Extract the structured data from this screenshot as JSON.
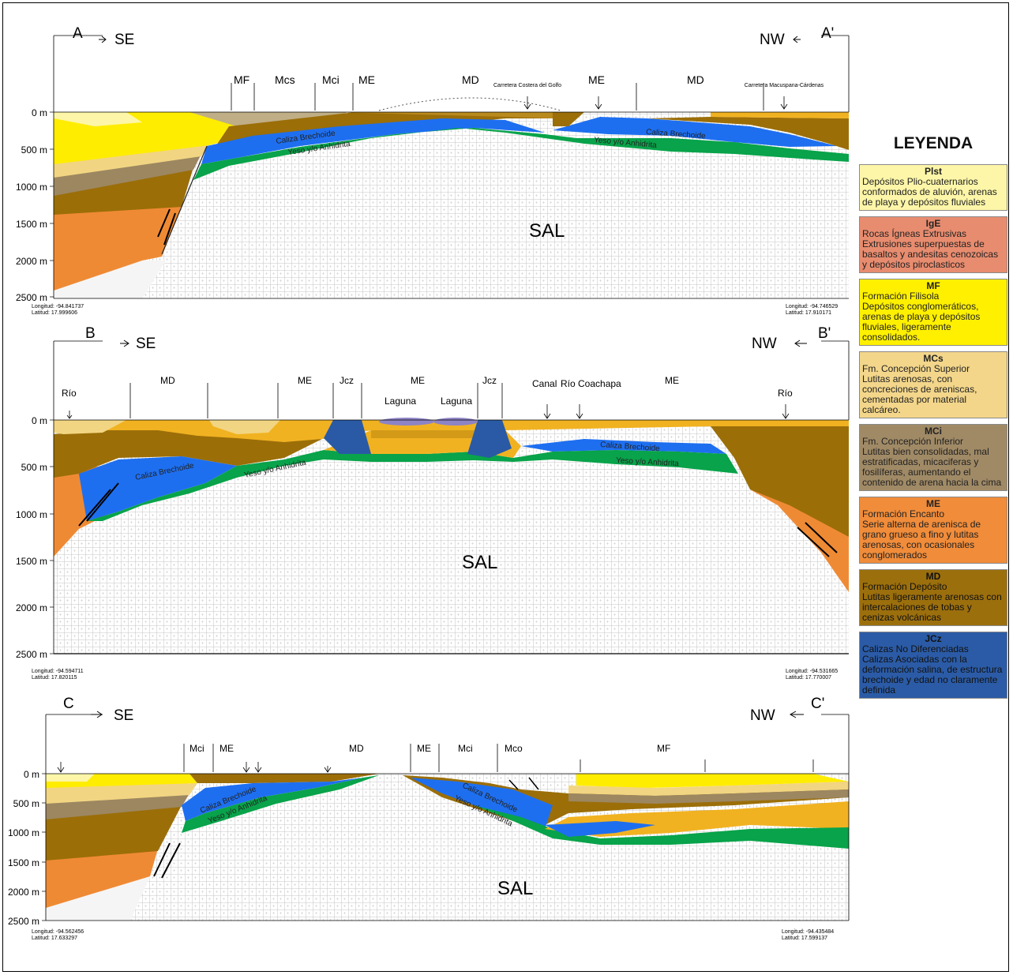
{
  "colors": {
    "plst": "#fdf6a8",
    "ige": "#ec8f6a",
    "mf": "#ffed00",
    "mcs": "#f2d582",
    "mci": "#9c8761",
    "me": "#ef8a34",
    "md": "#9b6e08",
    "jcz": "#2a5aa5",
    "caliza": "#1e6ff0",
    "yeso": "#08a34a",
    "light_orange": "#f1b221",
    "sal_grid": "#b9b9b9",
    "laguna": "#8d84c5"
  },
  "sections": [
    {
      "start_label": "A",
      "start_dir": "SE",
      "end_label": "A'",
      "end_dir": "NW",
      "depth_labels": [
        "0 m",
        "500 m",
        "1000 m",
        "1500 m",
        "2000 m",
        "2500 m"
      ],
      "unit_labels": [
        "MF",
        "Mcs",
        "Mci",
        "ME",
        "MD",
        "ME",
        "MD"
      ],
      "annotations": [
        "Carretera Costera del Golfo",
        "Carretera Macuspana-Cárdenas"
      ],
      "layer_labels": [
        "Caliza Brechoide",
        "Yeso y/o Anhidrita",
        "Caliza Brechoide",
        "Yeso y/o Anhidrita"
      ],
      "sal_label": "SAL",
      "coord_left": "Longitud: -94.841737\nLatitud: 17.999606",
      "coord_right": "Longitud: -94.746529\nLatitud: 17.910171"
    },
    {
      "start_label": "B",
      "start_dir": "SE",
      "end_label": "B'",
      "end_dir": "NW",
      "depth_labels": [
        "0 m",
        "500 m",
        "1000 m",
        "1500 m",
        "2000 m",
        "2500 m"
      ],
      "unit_labels": [
        "Río",
        "MD",
        "ME",
        "Jcz",
        "ME",
        "Laguna",
        "Laguna",
        "Jcz",
        "Canal",
        "Río Coachapa",
        "ME",
        "Río"
      ],
      "layer_labels": [
        "Caliza Brechoide",
        "Yeso y/o Anhidrita",
        "Caliza Brechoide",
        "Yeso y/o Anhidrita"
      ],
      "sal_label": "SAL",
      "coord_left": "Longitud: -94.594711\nLatitud: 17.820115",
      "coord_right": "Longitud: -94.531665\nLatitud: 17.770007"
    },
    {
      "start_label": "C",
      "start_dir": "SE",
      "end_label": "C'",
      "end_dir": "NW",
      "depth_labels": [
        "0 m",
        "500 m",
        "1000 m",
        "1500 m",
        "2000 m",
        "2500 m"
      ],
      "unit_labels": [
        "Mci",
        "ME",
        "MD",
        "ME",
        "Mci",
        "Mco",
        "MF"
      ],
      "layer_labels": [
        "Caliza Brechoide",
        "Yeso y/o Anhidrita",
        "Caliza Brechoide",
        "Yeso y/o Anhidrita"
      ],
      "sal_label": "SAL",
      "coord_left": "Longitud: -94.562456\nLatitud: 17.633297",
      "coord_right": "Longitud: -94.435484\nLatitud: 17.599137"
    }
  ],
  "legend": {
    "title": "LEYENDA",
    "items": [
      {
        "code": "Plst",
        "color": "#fdf6a8",
        "desc": "Depósitos Plio-cuaternarios conformados de aluvión, arenas de playa y depósitos fluviales"
      },
      {
        "code": "IgE",
        "color": "#e88c6f",
        "desc": "Rocas Ígneas Extrusivas\nExtrusiones superpuestas de basaltos y andesitas cenozoicas y depósitos piroclasticos"
      },
      {
        "code": "MF",
        "color": "#fff000",
        "desc": "Formación Filisola\nDepósitos conglomeráticos, arenas de playa y depósitos fluviales, ligeramente consolidados."
      },
      {
        "code": "MCs",
        "color": "#f3d68a",
        "desc": "Fm. Concepción Superior\nLutitas arenosas, con concreciones de areniscas, cementadas por material calcáreo."
      },
      {
        "code": "MCi",
        "color": "#a08a66",
        "desc": "Fm. Concepción Inferior\nLutitas bien consolidadas, mal estratificadas, micaciferas y fosilíferas, aumentando el contenido de arena hacia la cima"
      },
      {
        "code": "ME",
        "color": "#f08c3a",
        "desc": "Formación Encanto\nSerie alterna de arenisca de grano grueso a fino y lutitas arenosas, con ocasionales conglomerados"
      },
      {
        "code": "MD",
        "color": "#9c6f0d",
        "desc": "Formación Depósito\nLutitas ligeramente arenosas con intercalaciones de tobas y cenizas volcánicas"
      },
      {
        "code": "JCz",
        "color": "#2b5ba6",
        "desc": "Calizas No Diferenciadas\nCalizas Asociadas con la deformación salina, de estructura brechoide y edad no claramente definida"
      }
    ]
  }
}
